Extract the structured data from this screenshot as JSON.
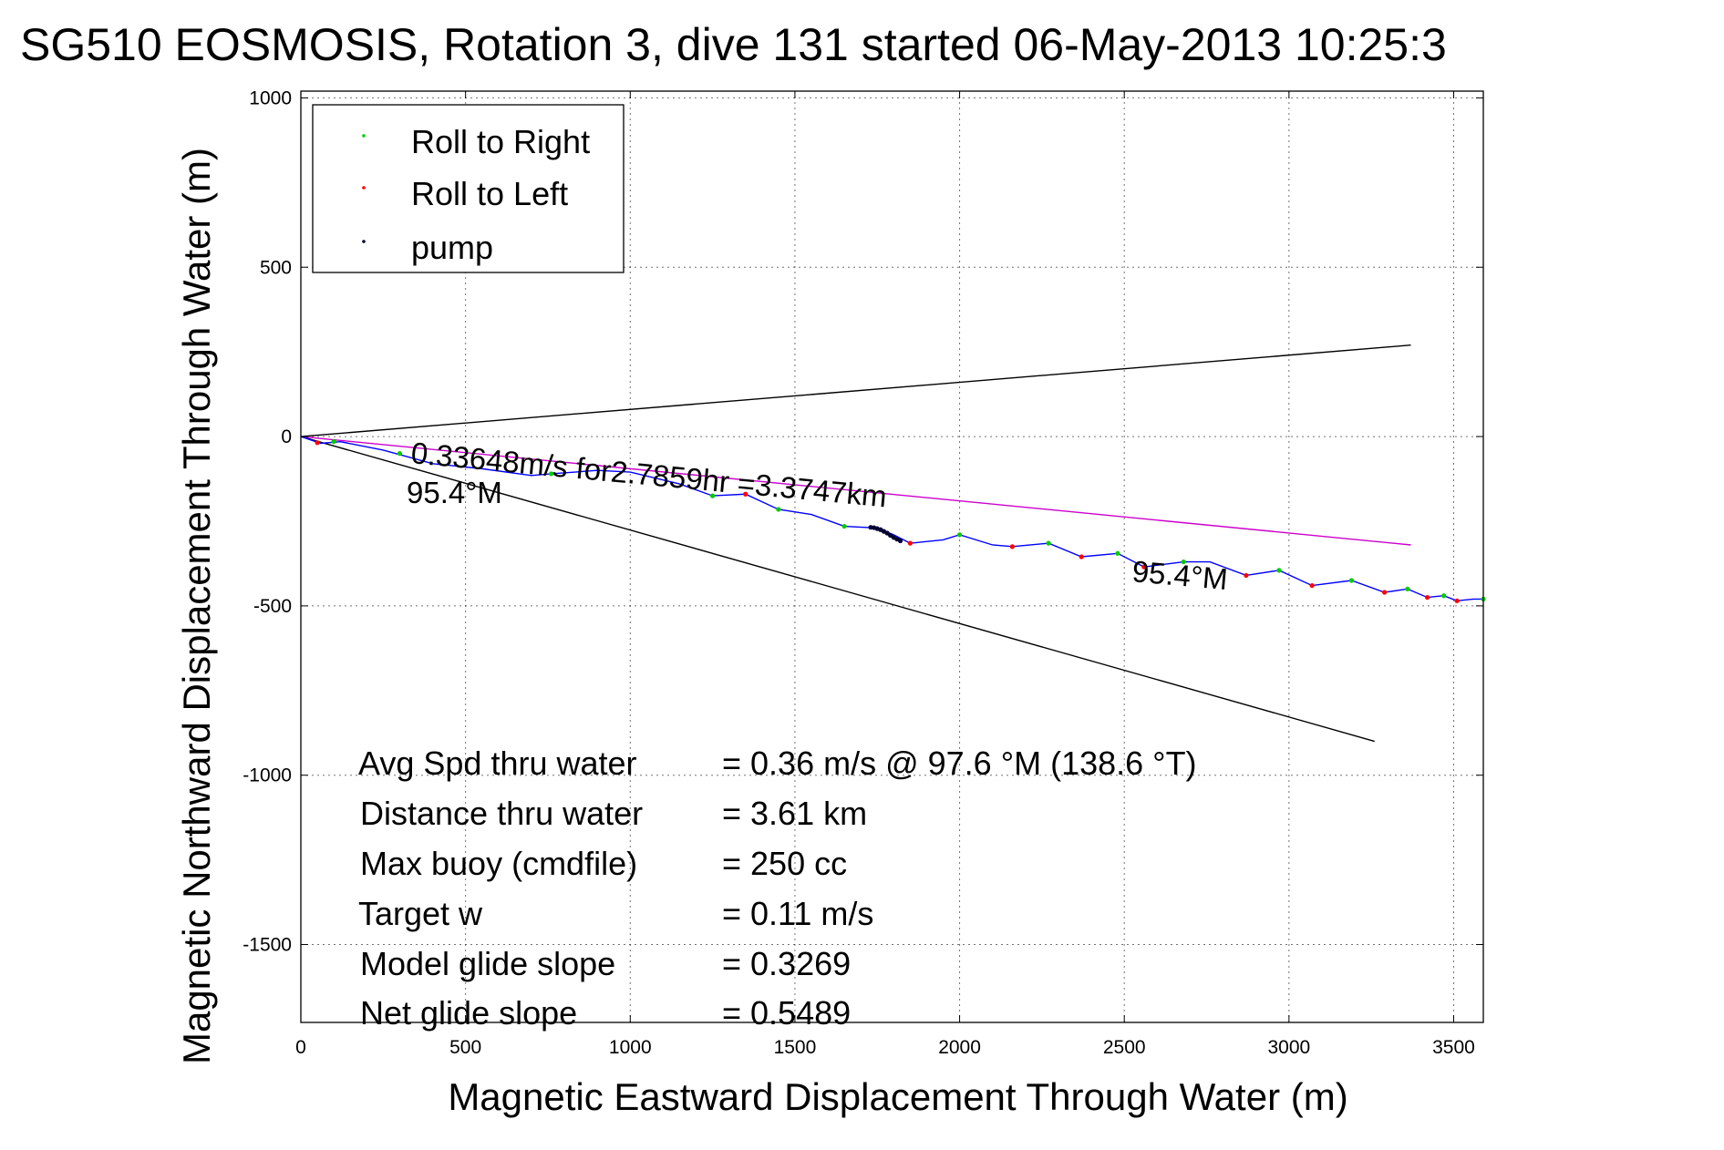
{
  "chart_data": {
    "type": "scatter",
    "title": "SG510 EOSMOSIS, Rotation 3, dive 131 started 06-May-2013 10:25:3",
    "xlabel": "Magnetic Eastward Displacement Through Water (m)",
    "ylabel": "Magnetic Northward Displacement Through Water (m)",
    "xlim": [
      0,
      3590
    ],
    "ylim": [
      -1730,
      1020
    ],
    "xticks": [
      0,
      500,
      1000,
      1500,
      2000,
      2500,
      3000,
      3500
    ],
    "yticks": [
      1000,
      500,
      0,
      -500,
      -1000,
      -1500
    ],
    "grid": true,
    "legend": {
      "placement": "top-left",
      "entries": [
        {
          "label": "Roll to Right",
          "color": "#00cc00"
        },
        {
          "label": "Roll to Left",
          "color": "#ff0000"
        },
        {
          "label": "pump",
          "color": "#000033"
        }
      ]
    },
    "track": {
      "name": "track",
      "color": "#0000ff",
      "x": [
        0,
        60,
        120,
        250,
        400,
        550,
        700,
        760,
        900,
        1000,
        1150,
        1250,
        1350,
        1450,
        1550,
        1650,
        1750,
        1800,
        1850,
        1950,
        2000,
        2100,
        2160,
        2270,
        2370,
        2480,
        2560,
        2680,
        2760,
        2870,
        2970,
        3070,
        3190,
        3290,
        3360,
        3420,
        3470,
        3510,
        3560,
        3590
      ],
      "y": [
        0,
        -20,
        -15,
        -40,
        -80,
        -95,
        -115,
        -110,
        -100,
        -105,
        -140,
        -175,
        -170,
        -215,
        -230,
        -265,
        -270,
        -290,
        -315,
        -305,
        -290,
        -320,
        -325,
        -315,
        -355,
        -345,
        -385,
        -370,
        -370,
        -410,
        -395,
        -440,
        -425,
        -460,
        -450,
        -475,
        -470,
        -485,
        -480,
        -480
      ]
    },
    "roll_right": {
      "x": [
        100,
        300,
        760,
        1250,
        1450,
        1650,
        2000,
        2270,
        2480,
        2680,
        2970,
        3190,
        3360,
        3470,
        3590
      ],
      "y": [
        -15,
        -50,
        -110,
        -175,
        -215,
        -265,
        -290,
        -315,
        -345,
        -370,
        -395,
        -425,
        -450,
        -470,
        -480
      ]
    },
    "roll_left": {
      "x": [
        50,
        1350,
        1850,
        2160,
        2370,
        2560,
        2870,
        3070,
        3290,
        3420,
        3510
      ],
      "y": [
        -18,
        -170,
        -315,
        -325,
        -355,
        -385,
        -410,
        -440,
        -460,
        -475,
        -485
      ]
    },
    "pump": {
      "x": [
        1730,
        1740,
        1750,
        1760,
        1770,
        1780,
        1790,
        1800,
        1810,
        1820
      ],
      "y": [
        -268,
        -269,
        -272,
        -275,
        -280,
        -285,
        -292,
        -298,
        -303,
        -308
      ]
    },
    "reference_lines": [
      {
        "name": "upper-bound",
        "color": "#000000",
        "x": [
          0,
          3370
        ],
        "y": [
          0,
          270
        ]
      },
      {
        "name": "lower-bound",
        "color": "#000000",
        "x": [
          0,
          3260
        ],
        "y": [
          0,
          -900
        ]
      },
      {
        "name": "heading",
        "color": "#cc00cc",
        "x": [
          0,
          3370
        ],
        "y": [
          0,
          -320
        ]
      }
    ],
    "annotations": {
      "speed_line": "0.33648m/s for2.7859hr =3.3747km",
      "heading_start": "95.4°M",
      "heading_end": "95.4°M"
    },
    "stats": [
      {
        "label": "Avg Spd thru water",
        "value": "=  0.36 m/s @  97.6 °M (138.6 °T)"
      },
      {
        "label": "Distance thru water",
        "value": "=  3.61 km"
      },
      {
        "label": "Max buoy (cmdfile)",
        "value": "= 250 cc"
      },
      {
        "label": "Target w",
        "value": "= 0.11 m/s"
      },
      {
        "label": "Model glide slope",
        "value": "= 0.3269"
      },
      {
        "label": "Net glide slope",
        "value": "= 0.5489"
      }
    ]
  }
}
